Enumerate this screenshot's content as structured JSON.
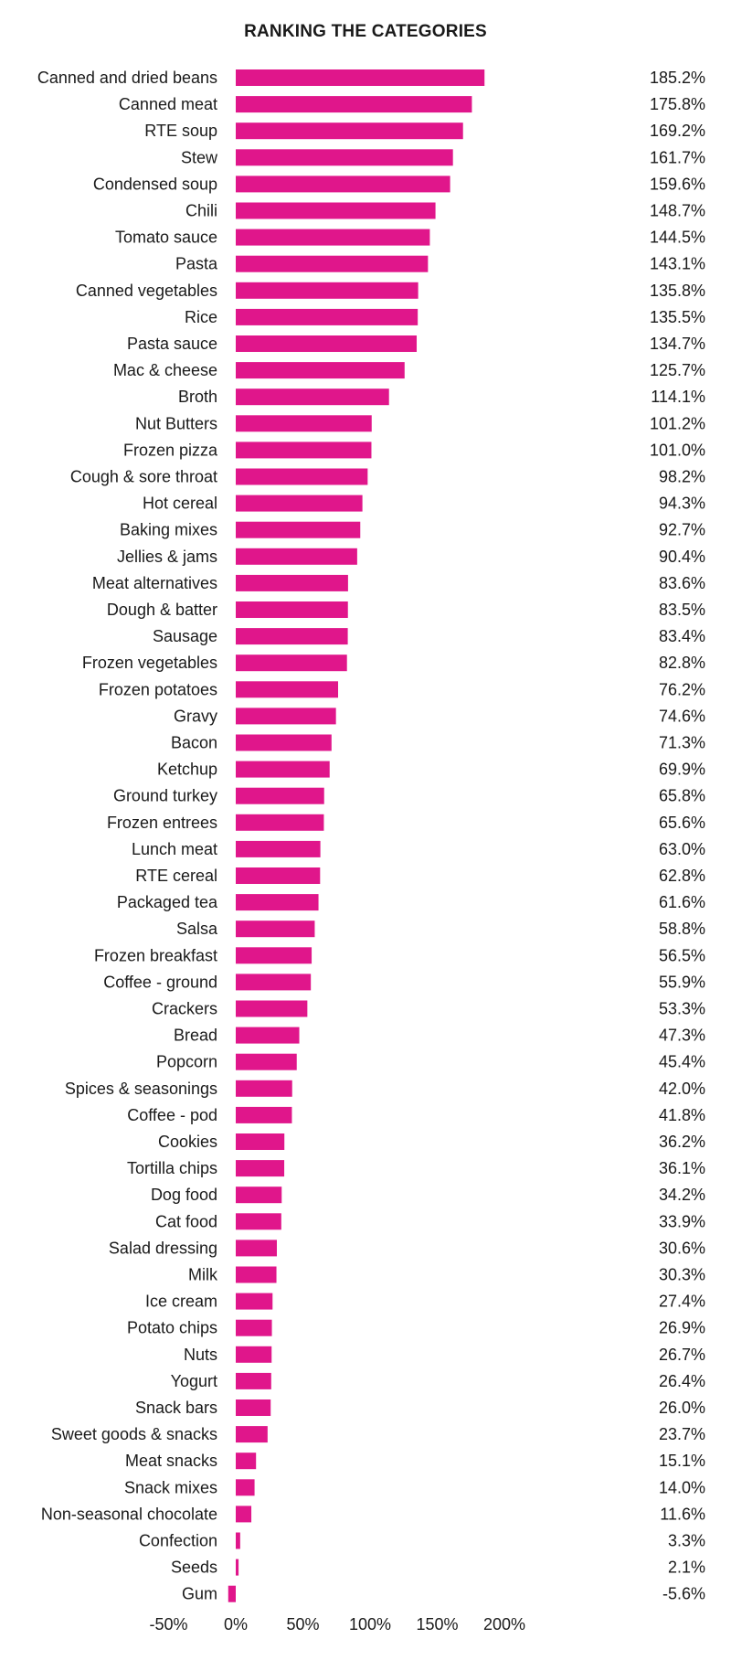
{
  "chart_data": {
    "type": "bar",
    "orientation": "horizontal",
    "title": "RANKING THE CATEGORIES",
    "xlabel": "",
    "ylabel": "",
    "xlim": [
      -50,
      200
    ],
    "xticks": [
      -50,
      0,
      50,
      100,
      150,
      200
    ],
    "xtick_labels": [
      "-50%",
      "0%",
      "50%",
      "100%",
      "150%",
      "200%"
    ],
    "grid": false,
    "legend": "none",
    "bar_color": "#E0168B",
    "categories": [
      "Canned and dried beans",
      "Canned meat",
      "RTE soup",
      "Stew",
      "Condensed soup",
      "Chili",
      "Tomato sauce",
      "Pasta",
      "Canned vegetables",
      "Rice",
      "Pasta sauce",
      "Mac & cheese",
      "Broth",
      "Nut Butters",
      "Frozen pizza",
      "Cough & sore throat",
      "Hot cereal",
      "Baking mixes",
      "Jellies & jams",
      "Meat alternatives",
      "Dough & batter",
      "Sausage",
      "Frozen vegetables",
      "Frozen potatoes",
      "Gravy",
      "Bacon",
      "Ketchup",
      "Ground turkey",
      "Frozen entrees",
      "Lunch meat",
      "RTE cereal",
      "Packaged tea",
      "Salsa",
      "Frozen breakfast",
      "Coffee - ground",
      "Crackers",
      "Bread",
      "Popcorn",
      "Spices & seasonings",
      "Coffee - pod",
      "Cookies",
      "Tortilla chips",
      "Dog food",
      "Cat food",
      "Salad dressing",
      "Milk",
      "Ice cream",
      "Potato chips",
      "Nuts",
      "Yogurt",
      "Snack bars",
      "Sweet goods & snacks",
      "Meat snacks",
      "Snack mixes",
      "Non-seasonal chocolate",
      "Confection",
      "Seeds",
      "Gum"
    ],
    "values": [
      185.2,
      175.8,
      169.2,
      161.7,
      159.6,
      148.7,
      144.5,
      143.1,
      135.8,
      135.5,
      134.7,
      125.7,
      114.1,
      101.2,
      101.0,
      98.2,
      94.3,
      92.7,
      90.4,
      83.6,
      83.5,
      83.4,
      82.8,
      76.2,
      74.6,
      71.3,
      69.9,
      65.8,
      65.6,
      63.0,
      62.8,
      61.6,
      58.8,
      56.5,
      55.9,
      53.3,
      47.3,
      45.4,
      42.0,
      41.8,
      36.2,
      36.1,
      34.2,
      33.9,
      30.6,
      30.3,
      27.4,
      26.9,
      26.7,
      26.4,
      26.0,
      23.7,
      15.1,
      14.0,
      11.6,
      3.3,
      2.1,
      -5.6
    ],
    "value_labels": [
      "185.2%",
      "175.8%",
      "169.2%",
      "161.7%",
      "159.6%",
      "148.7%",
      "144.5%",
      "143.1%",
      "135.8%",
      "135.5%",
      "134.7%",
      "125.7%",
      "114.1%",
      "101.2%",
      "101.0%",
      "98.2%",
      "94.3%",
      "92.7%",
      "90.4%",
      "83.6%",
      "83.5%",
      "83.4%",
      "82.8%",
      "76.2%",
      "74.6%",
      "71.3%",
      "69.9%",
      "65.8%",
      "65.6%",
      "63.0%",
      "62.8%",
      "61.6%",
      "58.8%",
      "56.5%",
      "55.9%",
      "53.3%",
      "47.3%",
      "45.4%",
      "42.0%",
      "41.8%",
      "36.2%",
      "36.1%",
      "34.2%",
      "33.9%",
      "30.6%",
      "30.3%",
      "27.4%",
      "26.9%",
      "26.7%",
      "26.4%",
      "26.0%",
      "23.7%",
      "15.1%",
      "14.0%",
      "11.6%",
      "3.3%",
      "2.1%",
      "-5.6%"
    ]
  }
}
